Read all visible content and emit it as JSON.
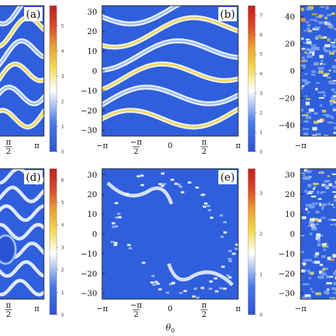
{
  "chart_data": {
    "type": "heatmap",
    "x_axis_label": "θ0",
    "x_tick_labels": [
      "−π",
      "−π/2",
      "0",
      "π/2",
      "π"
    ],
    "x_range": [
      -3.1416,
      3.1416
    ],
    "colormap": {
      "stops": [
        "#2a53d3",
        "#4a7ce8",
        "#ffffff",
        "#f2d84b",
        "#e8a035",
        "#d94a2a",
        "#c41e1e"
      ]
    },
    "panels": [
      {
        "label": "(a)",
        "y_ticks": [],
        "colorbar_ticks": [
          "0",
          "1",
          "2",
          "3",
          "4",
          "5"
        ],
        "colorbar_max": 5.8,
        "x_tick_labels_shown": [
          "π/2",
          "π"
        ]
      },
      {
        "label": "(b)",
        "y_ticks": [
          30,
          20,
          10,
          0,
          -10,
          -20,
          -30
        ],
        "y_range": [
          -33,
          33
        ],
        "colorbar_ticks": [
          "0",
          "1",
          "2",
          "3",
          "4",
          "5",
          "6",
          "7"
        ],
        "colorbar_max": 7.5,
        "x_tick_labels_shown": [
          "−π",
          "−π/2",
          "0",
          "π/2",
          "π"
        ]
      },
      {
        "label": "",
        "y_ticks": [
          40,
          20,
          0,
          -20,
          -40
        ],
        "y_range": [
          -48,
          48
        ],
        "colorbar_ticks": [],
        "x_tick_labels_shown": [
          "−π"
        ]
      },
      {
        "label": "(d)",
        "y_ticks": [],
        "colorbar_ticks": [
          "0",
          "1",
          "2",
          "3",
          "4",
          "5",
          "6"
        ],
        "colorbar_max": 6.5,
        "x_tick_labels_shown": [
          "π/2",
          "π"
        ]
      },
      {
        "label": "(e)",
        "y_ticks": [
          30,
          20,
          10,
          0,
          -10,
          -20,
          -30
        ],
        "y_range": [
          -33,
          33
        ],
        "colorbar_ticks": [
          "0",
          "1",
          "2",
          "3"
        ],
        "colorbar_max": 3.6,
        "x_tick_labels_shown": [
          "−π",
          "−π/2",
          "0",
          "π/2",
          "π"
        ]
      },
      {
        "label": "",
        "y_ticks": [
          30,
          20,
          10,
          0,
          -10,
          -20,
          -30
        ],
        "y_range": [
          -33,
          33
        ],
        "colorbar_ticks": [],
        "x_tick_labels_shown": [
          "−π"
        ]
      }
    ]
  }
}
